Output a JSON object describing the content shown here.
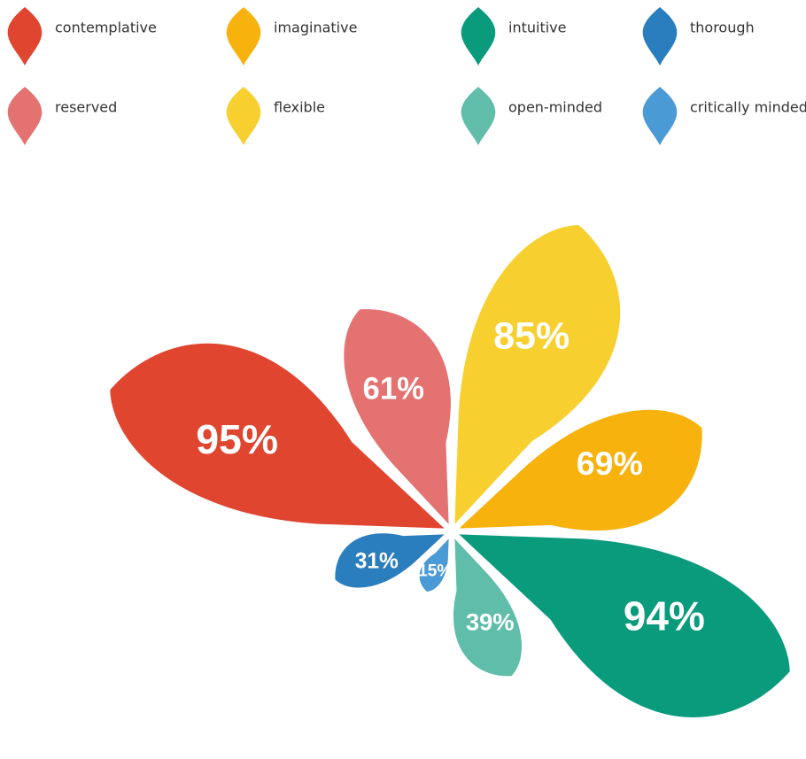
{
  "chart_data": {
    "type": "petal",
    "series": [
      {
        "name": "contemplative",
        "color": "#e04530",
        "values": [
          95
        ],
        "value_labels": [
          "95%"
        ]
      },
      {
        "name": "imaginative",
        "color": "#f7b20e",
        "values": [
          69
        ],
        "value_labels": [
          "69%"
        ]
      },
      {
        "name": "intuitive",
        "color": "#0a9b7d",
        "values": [
          94
        ],
        "value_labels": [
          "94%"
        ]
      },
      {
        "name": "thorough",
        "color": "#2a7ebe",
        "values": [
          31
        ],
        "value_labels": [
          "31%"
        ]
      },
      {
        "name": "reserved",
        "color": "#e37271",
        "values": [
          61
        ],
        "value_labels": [
          "61%"
        ]
      },
      {
        "name": "flexible",
        "color": "#f7d030",
        "values": [
          85
        ],
        "value_labels": [
          "85%"
        ]
      },
      {
        "name": "open-minded",
        "color": "#5fbdaa",
        "values": [
          39
        ],
        "value_labels": [
          "39%"
        ]
      },
      {
        "name": "critically minded",
        "color": "#4a9ad6",
        "values": [
          15
        ],
        "value_labels": [
          "15%"
        ]
      }
    ]
  }
}
